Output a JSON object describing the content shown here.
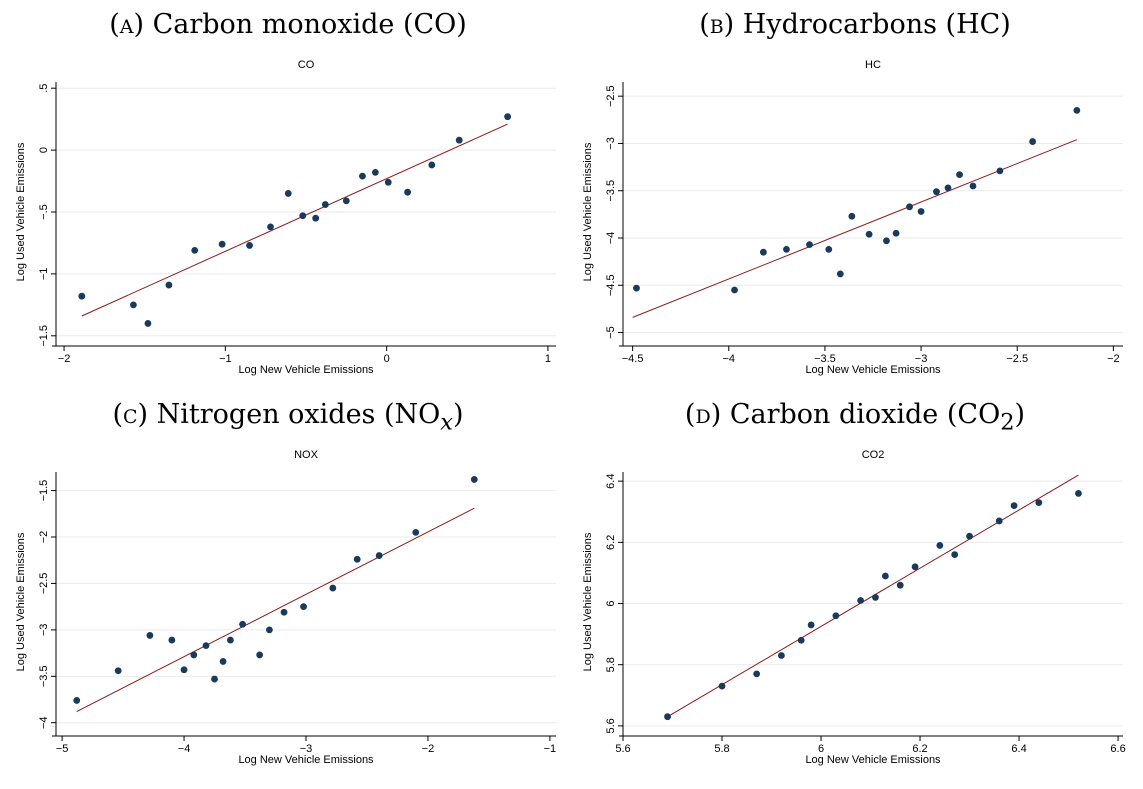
{
  "panels": [
    {
      "caption_letter": "(a)",
      "caption_text": "Carbon monoxide (CO)",
      "caption_html": "<span class=\"sc\">(a)</span> Carbon monoxide (CO)"
    },
    {
      "caption_letter": "(b)",
      "caption_text": "Hydrocarbons (HC)",
      "caption_html": "<span class=\"sc\">(b)</span> Hydrocarbons (HC)"
    },
    {
      "caption_letter": "(c)",
      "caption_text": "Nitrogen oxides (NOx)",
      "caption_html": "<span class=\"sc\">(c)</span> Nitrogen oxides (NO<sub><i>x</i></sub>)"
    },
    {
      "caption_letter": "(d)",
      "caption_text": "Carbon dioxide (CO2)",
      "caption_html": "<span class=\"sc\">(d)</span> Carbon dioxide (CO<sub>2</sub>)"
    }
  ],
  "colors": {
    "point": "#1a3a5c",
    "fit_line": "#8b1a1a",
    "grid": "#eaeaea",
    "axis": "#000000"
  },
  "chart_data": [
    {
      "type": "scatter",
      "title": "CO",
      "xlabel": "Log New Vehicle Emissions",
      "ylabel": "Log Used Vehicle Emissions",
      "xlim": [
        -2.05,
        1.05
      ],
      "ylim": [
        -1.55,
        0.55
      ],
      "xticks": [
        -2,
        -1,
        0,
        1
      ],
      "xtick_labels": [
        "−2",
        "−1",
        "0",
        "1"
      ],
      "yticks": [
        -1.5,
        -1,
        -0.5,
        0,
        0.5
      ],
      "ytick_labels": [
        "−1.5",
        "−1",
        "−.5",
        "0",
        ".5"
      ],
      "grid": true,
      "points": [
        [
          -1.89,
          -1.18
        ],
        [
          -1.57,
          -1.25
        ],
        [
          -1.48,
          -1.4
        ],
        [
          -1.35,
          -1.09
        ],
        [
          -1.19,
          -0.81
        ],
        [
          -1.02,
          -0.76
        ],
        [
          -0.85,
          -0.77
        ],
        [
          -0.72,
          -0.62
        ],
        [
          -0.61,
          -0.35
        ],
        [
          -0.52,
          -0.53
        ],
        [
          -0.44,
          -0.55
        ],
        [
          -0.38,
          -0.44
        ],
        [
          -0.25,
          -0.41
        ],
        [
          -0.15,
          -0.21
        ],
        [
          -0.07,
          -0.18
        ],
        [
          0.01,
          -0.26
        ],
        [
          0.13,
          -0.34
        ],
        [
          0.28,
          -0.12
        ],
        [
          0.45,
          0.08
        ],
        [
          0.75,
          0.27
        ]
      ],
      "fit_line": [
        [
          -1.89,
          -1.34
        ],
        [
          0.75,
          0.21
        ]
      ]
    },
    {
      "type": "scatter",
      "title": "HC",
      "xlabel": "Log New Vehicle Emissions",
      "ylabel": "Log Used Vehicle Emissions",
      "xlim": [
        -4.55,
        -1.95
      ],
      "ylim": [
        -5.1,
        -2.35
      ],
      "xticks": [
        -4.5,
        -4,
        -3.5,
        -3,
        -2.5,
        -2
      ],
      "xtick_labels": [
        "−4.5",
        "−4",
        "−3.5",
        "−3",
        "−2.5",
        "−2"
      ],
      "yticks": [
        -5,
        -4.5,
        -4,
        -3.5,
        -3,
        -2.5
      ],
      "ytick_labels": [
        "−5",
        "−4.5",
        "−4",
        "−3.5",
        "−3",
        "−2.5"
      ],
      "grid": true,
      "points": [
        [
          -4.48,
          -4.53
        ],
        [
          -3.97,
          -4.55
        ],
        [
          -3.82,
          -4.15
        ],
        [
          -3.7,
          -4.12
        ],
        [
          -3.58,
          -4.07
        ],
        [
          -3.48,
          -4.12
        ],
        [
          -3.42,
          -4.38
        ],
        [
          -3.36,
          -3.77
        ],
        [
          -3.27,
          -3.96
        ],
        [
          -3.18,
          -4.03
        ],
        [
          -3.13,
          -3.95
        ],
        [
          -3.06,
          -3.67
        ],
        [
          -3.0,
          -3.72
        ],
        [
          -2.92,
          -3.51
        ],
        [
          -2.86,
          -3.47
        ],
        [
          -2.8,
          -3.33
        ],
        [
          -2.73,
          -3.45
        ],
        [
          -2.59,
          -3.29
        ],
        [
          -2.42,
          -2.98
        ],
        [
          -2.19,
          -2.65
        ]
      ],
      "fit_line": [
        [
          -4.5,
          -4.84
        ],
        [
          -2.19,
          -2.96
        ]
      ]
    },
    {
      "type": "scatter",
      "title": "NOX",
      "xlabel": "Log New Vehicle Emissions",
      "ylabel": "Log Used Vehicle Emissions",
      "xlim": [
        -5.05,
        -0.95
      ],
      "ylim": [
        -4.1,
        -1.3
      ],
      "xticks": [
        -5,
        -4,
        -3,
        -2,
        -1
      ],
      "xtick_labels": [
        "−5",
        "−4",
        "−3",
        "−2",
        "−1"
      ],
      "yticks": [
        -4,
        -3.5,
        -3,
        -2.5,
        -2,
        -1.5
      ],
      "ytick_labels": [
        "−4",
        "−3.5",
        "−3",
        "−2.5",
        "−2",
        "−1.5"
      ],
      "grid": true,
      "points": [
        [
          -4.88,
          -3.76
        ],
        [
          -4.54,
          -3.44
        ],
        [
          -4.28,
          -3.06
        ],
        [
          -4.1,
          -3.11
        ],
        [
          -4.0,
          -3.43
        ],
        [
          -3.92,
          -3.27
        ],
        [
          -3.82,
          -3.17
        ],
        [
          -3.75,
          -3.53
        ],
        [
          -3.68,
          -3.34
        ],
        [
          -3.62,
          -3.11
        ],
        [
          -3.52,
          -2.94
        ],
        [
          -3.38,
          -3.27
        ],
        [
          -3.3,
          -3.0
        ],
        [
          -3.18,
          -2.81
        ],
        [
          -3.02,
          -2.75
        ],
        [
          -2.78,
          -2.55
        ],
        [
          -2.58,
          -2.24
        ],
        [
          -2.4,
          -2.2
        ],
        [
          -2.1,
          -1.95
        ],
        [
          -1.62,
          -1.38
        ]
      ],
      "fit_line": [
        [
          -4.88,
          -3.88
        ],
        [
          -1.62,
          -1.69
        ]
      ]
    },
    {
      "type": "scatter",
      "title": "CO2",
      "xlabel": "Log New Vehicle Emissions",
      "ylabel": "Log Used Vehicle Emissions",
      "xlim": [
        5.6,
        6.61
      ],
      "ylim": [
        5.58,
        6.43
      ],
      "xticks": [
        5.6,
        5.8,
        6.0,
        6.2,
        6.4,
        6.6
      ],
      "xtick_labels": [
        "5.6",
        "5.8",
        "6",
        "6.2",
        "6.4",
        "6.6"
      ],
      "yticks": [
        5.6,
        5.8,
        6.0,
        6.2,
        6.4
      ],
      "ytick_labels": [
        "5.6",
        "5.8",
        "6",
        "6.2",
        "6.4"
      ],
      "grid": true,
      "points": [
        [
          5.69,
          5.63
        ],
        [
          5.8,
          5.73
        ],
        [
          5.87,
          5.77
        ],
        [
          5.92,
          5.83
        ],
        [
          5.96,
          5.88
        ],
        [
          5.98,
          5.93
        ],
        [
          6.03,
          5.96
        ],
        [
          6.08,
          6.01
        ],
        [
          6.11,
          6.02
        ],
        [
          6.13,
          6.09
        ],
        [
          6.16,
          6.06
        ],
        [
          6.19,
          6.12
        ],
        [
          6.24,
          6.19
        ],
        [
          6.27,
          6.16
        ],
        [
          6.3,
          6.22
        ],
        [
          6.36,
          6.27
        ],
        [
          6.39,
          6.32
        ],
        [
          6.44,
          6.33
        ],
        [
          6.52,
          6.36
        ]
      ],
      "fit_line": [
        [
          5.69,
          5.63
        ],
        [
          6.52,
          6.42
        ]
      ]
    }
  ]
}
